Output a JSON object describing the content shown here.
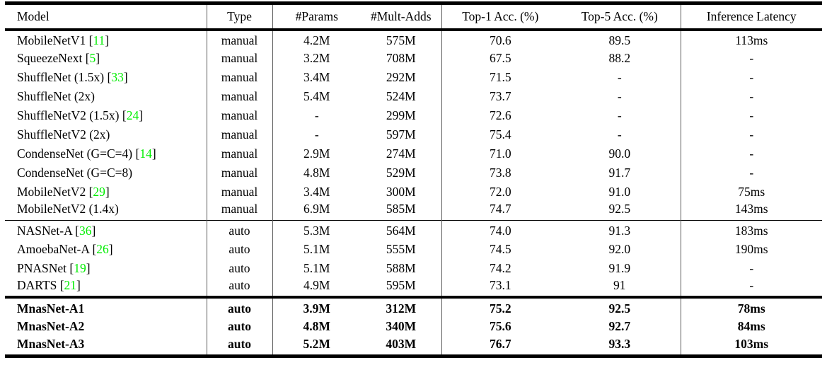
{
  "colors": {
    "background": "#ffffff",
    "text": "#000000",
    "rule": "#000000",
    "column_divider": "#5a5a5a",
    "citation_green": "#00ee00"
  },
  "table": {
    "cite_prefix": " [",
    "cite_suffix": "]",
    "columns": [
      {
        "key": "model",
        "label": "Model"
      },
      {
        "key": "type",
        "label": "Type"
      },
      {
        "key": "params",
        "label": "#Params"
      },
      {
        "key": "mult_adds",
        "label": "#Mult-Adds"
      },
      {
        "key": "top1",
        "label": "Top-1 Acc. (%)"
      },
      {
        "key": "top5",
        "label": "Top-5 Acc. (%)"
      },
      {
        "key": "latency",
        "label": "Inference Latency"
      }
    ],
    "groups": [
      {
        "name": "manual-models",
        "bold": false,
        "rows": [
          {
            "model": "MobileNetV1",
            "cite": "11",
            "type": "manual",
            "params": "4.2M",
            "mult_adds": "575M",
            "top1": "70.6",
            "top5": "89.5",
            "latency": "113ms"
          },
          {
            "model": "SqueezeNext",
            "cite": "5",
            "type": "manual",
            "params": "3.2M",
            "mult_adds": "708M",
            "top1": "67.5",
            "top5": "88.2",
            "latency": "-"
          },
          {
            "model": "ShuffleNet (1.5x)",
            "cite": "33",
            "type": "manual",
            "params": "3.4M",
            "mult_adds": "292M",
            "top1": "71.5",
            "top5": "-",
            "latency": "-"
          },
          {
            "model": "ShuffleNet (2x)",
            "cite": "",
            "type": "manual",
            "params": "5.4M",
            "mult_adds": "524M",
            "top1": "73.7",
            "top5": "-",
            "latency": "-"
          },
          {
            "model": "ShuffleNetV2 (1.5x)",
            "cite": "24",
            "type": "manual",
            "params": "-",
            "mult_adds": "299M",
            "top1": "72.6",
            "top5": "-",
            "latency": "-"
          },
          {
            "model": "ShuffleNetV2 (2x)",
            "cite": "",
            "type": "manual",
            "params": "-",
            "mult_adds": "597M",
            "top1": "75.4",
            "top5": "-",
            "latency": "-"
          },
          {
            "model": "CondenseNet (G=C=4)",
            "cite": "14",
            "type": "manual",
            "params": "2.9M",
            "mult_adds": "274M",
            "top1": "71.0",
            "top5": "90.0",
            "latency": "-"
          },
          {
            "model": "CondenseNet (G=C=8)",
            "cite": "",
            "type": "manual",
            "params": "4.8M",
            "mult_adds": "529M",
            "top1": "73.8",
            "top5": "91.7",
            "latency": "-"
          },
          {
            "model": "MobileNetV2",
            "cite": "29",
            "type": "manual",
            "params": "3.4M",
            "mult_adds": "300M",
            "top1": "72.0",
            "top5": "91.0",
            "latency": "75ms"
          },
          {
            "model": "MobileNetV2 (1.4x)",
            "cite": "",
            "type": "manual",
            "params": "6.9M",
            "mult_adds": "585M",
            "top1": "74.7",
            "top5": "92.5",
            "latency": "143ms"
          }
        ]
      },
      {
        "name": "auto-models",
        "bold": false,
        "rows": [
          {
            "model": "NASNet-A",
            "cite": "36",
            "type": "auto",
            "params": "5.3M",
            "mult_adds": "564M",
            "top1": "74.0",
            "top5": "91.3",
            "latency": "183ms"
          },
          {
            "model": "AmoebaNet-A",
            "cite": "26",
            "type": "auto",
            "params": "5.1M",
            "mult_adds": "555M",
            "top1": "74.5",
            "top5": "92.0",
            "latency": "190ms"
          },
          {
            "model": "PNASNet",
            "cite": "19",
            "type": "auto",
            "params": "5.1M",
            "mult_adds": "588M",
            "top1": "74.2",
            "top5": "91.9",
            "latency": "-"
          },
          {
            "model": "DARTS",
            "cite": "21",
            "type": "auto",
            "params": "4.9M",
            "mult_adds": "595M",
            "top1": "73.1",
            "top5": "91",
            "latency": "-"
          }
        ]
      },
      {
        "name": "mnasnet-models",
        "bold": true,
        "rows": [
          {
            "model": "MnasNet-A1",
            "cite": "",
            "type": "auto",
            "params": "3.9M",
            "mult_adds": "312M",
            "top1": "75.2",
            "top5": "92.5",
            "latency": "78ms"
          },
          {
            "model": "MnasNet-A2",
            "cite": "",
            "type": "auto",
            "params": "4.8M",
            "mult_adds": "340M",
            "top1": "75.6",
            "top5": "92.7",
            "latency": "84ms"
          },
          {
            "model": "MnasNet-A3",
            "cite": "",
            "type": "auto",
            "params": "5.2M",
            "mult_adds": "403M",
            "top1": "76.7",
            "top5": "93.3",
            "latency": "103ms"
          }
        ]
      }
    ]
  }
}
